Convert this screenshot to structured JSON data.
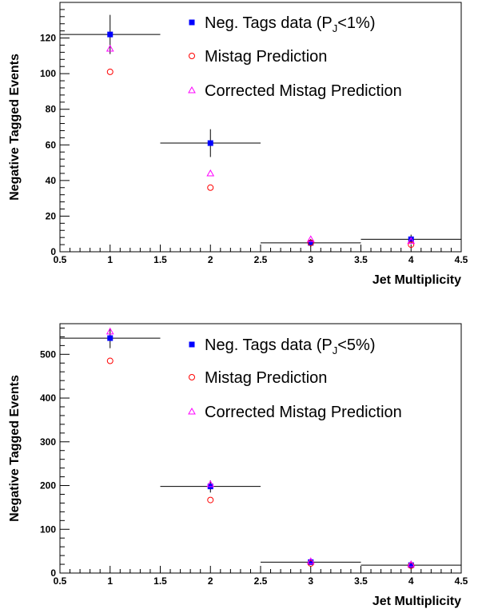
{
  "chart_data": [
    {
      "type": "scatter",
      "title": "",
      "xlabel": "Jet Multiplicity",
      "ylabel": "Negative Tagged Events",
      "xlim": [
        0.5,
        4.5
      ],
      "ylim": [
        0,
        140
      ],
      "x_ticks": [
        "0.5",
        "1",
        "1.5",
        "2",
        "2.5",
        "3",
        "3.5",
        "4",
        "4.5"
      ],
      "y_ticks": [
        "0",
        "20",
        "40",
        "60",
        "80",
        "100",
        "120"
      ],
      "grid": false,
      "legend_position": "top-right",
      "series": [
        {
          "name": "Neg. Tags data (P_J<1%)",
          "legend_main": "Neg. Tags data (P",
          "legend_sub": "J",
          "legend_tail": "<1%)",
          "marker": "square",
          "color": "#0000ff",
          "points": [
            {
              "x": 1,
              "y": 122,
              "xerr": 0.5,
              "yerr": 11
            },
            {
              "x": 2,
              "y": 61,
              "xerr": 0.5,
              "yerr": 7.8
            },
            {
              "x": 3,
              "y": 5,
              "xerr": 0.5,
              "yerr": 2.2
            },
            {
              "x": 4,
              "y": 7,
              "xerr": 0.5,
              "yerr": 2.6
            }
          ]
        },
        {
          "name": "Mistag Prediction",
          "marker": "circle",
          "color": "#ff0000",
          "points": [
            {
              "x": 1,
              "y": 101
            },
            {
              "x": 2,
              "y": 36
            },
            {
              "x": 3,
              "y": 5
            },
            {
              "x": 4,
              "y": 4
            }
          ]
        },
        {
          "name": "Corrected Mistag Prediction",
          "marker": "triangle",
          "color": "#ff00ff",
          "points": [
            {
              "x": 1,
              "y": 114
            },
            {
              "x": 2,
              "y": 44
            },
            {
              "x": 3,
              "y": 7
            },
            {
              "x": 4,
              "y": 6
            }
          ]
        }
      ]
    },
    {
      "type": "scatter",
      "title": "",
      "xlabel": "Jet Multiplicity",
      "ylabel": "Negative Tagged Events",
      "xlim": [
        0.5,
        4.5
      ],
      "ylim": [
        0,
        570
      ],
      "x_ticks": [
        "0.5",
        "1",
        "1.5",
        "2",
        "2.5",
        "3",
        "3.5",
        "4",
        "4.5"
      ],
      "y_ticks": [
        "0",
        "100",
        "200",
        "300",
        "400",
        "500"
      ],
      "grid": false,
      "legend_position": "top-right",
      "series": [
        {
          "name": "Neg. Tags data (P_J<5%)",
          "legend_main": "Neg. Tags data (P",
          "legend_sub": "J",
          "legend_tail": "<5%)",
          "marker": "square",
          "color": "#0000ff",
          "points": [
            {
              "x": 1,
              "y": 537,
              "xerr": 0.5,
              "yerr": 23
            },
            {
              "x": 2,
              "y": 198,
              "xerr": 0.5,
              "yerr": 14
            },
            {
              "x": 3,
              "y": 25,
              "xerr": 0.5,
              "yerr": 5
            },
            {
              "x": 4,
              "y": 18,
              "xerr": 0.5,
              "yerr": 4.2
            }
          ]
        },
        {
          "name": "Mistag Prediction",
          "marker": "circle",
          "color": "#ff0000",
          "points": [
            {
              "x": 1,
              "y": 485
            },
            {
              "x": 2,
              "y": 167
            },
            {
              "x": 3,
              "y": 22
            },
            {
              "x": 4,
              "y": 17
            }
          ]
        },
        {
          "name": "Corrected Mistag Prediction",
          "marker": "triangle",
          "color": "#ff00ff",
          "points": [
            {
              "x": 1,
              "y": 552
            },
            {
              "x": 2,
              "y": 203
            },
            {
              "x": 3,
              "y": 27
            },
            {
              "x": 4,
              "y": 20
            }
          ]
        }
      ]
    }
  ]
}
